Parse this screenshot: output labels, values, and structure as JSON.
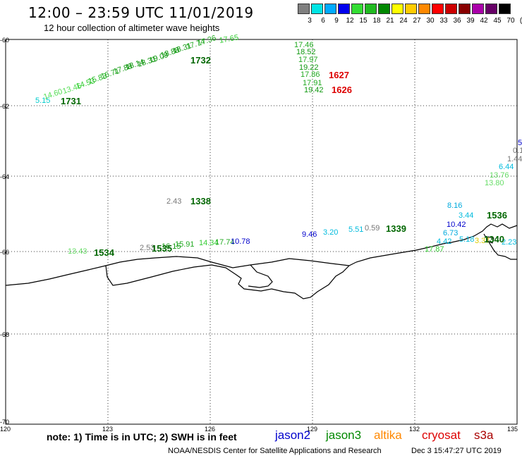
{
  "header": {
    "title": "12:00 – 23:59 UTC 11/01/2019",
    "subtitle": "12 hour collection of altimeter wave heights"
  },
  "color_scale": {
    "labels": [
      "3",
      "6",
      "9",
      "12",
      "15",
      "18",
      "21",
      "24",
      "27",
      "30",
      "33",
      "36",
      "39",
      "42",
      "45",
      "70",
      "(ft)"
    ],
    "colors": [
      "#808080",
      "#00e5e5",
      "#00aaff",
      "#0000ee",
      "#33dd33",
      "#22bb22",
      "#008800",
      "#ffff00",
      "#ffcc00",
      "#ff8800",
      "#ff0000",
      "#cc0000",
      "#880000",
      "#aa00aa",
      "#660066",
      "#000000"
    ]
  },
  "axes": {
    "lat_labels": [
      "-60",
      "-62",
      "-64",
      "-66",
      "-68",
      "-70"
    ],
    "lon_labels": [
      "120",
      "123",
      "126",
      "129",
      "132",
      "135"
    ]
  },
  "footer": {
    "note": "note:  1) Time is in UTC;  2) SWH is in feet",
    "satellites": [
      {
        "name": "jason2",
        "color": "#0000cc"
      },
      {
        "name": "jason3",
        "color": "#008800"
      },
      {
        "name": "altika",
        "color": "#ff8800"
      },
      {
        "name": "cryosat",
        "color": "#dd0000"
      },
      {
        "name": "s3a",
        "color": "#aa0000"
      }
    ],
    "credit": "NOAA/NESDIS Center for Satellite Applications and Research",
    "date": "Dec  3 15:47:27 UTC 2019"
  },
  "observations": [
    {
      "text": "5.15",
      "color": "#00cccc"
    },
    {
      "text": "14.60",
      "color": "#55dd55"
    },
    {
      "text": "13.46",
      "color": "#55dd55"
    },
    {
      "text": "14.53",
      "color": "#33cc33"
    },
    {
      "text": "15.83",
      "color": "#22bb22"
    },
    {
      "text": "16.71",
      "color": "#22aa22"
    },
    {
      "text": "17.88",
      "color": "#119911"
    },
    {
      "text": "18.14",
      "color": "#119911"
    },
    {
      "text": "18.31",
      "color": "#119911"
    },
    {
      "text": "19.09",
      "color": "#119911"
    },
    {
      "text": "18.88",
      "color": "#119911"
    },
    {
      "text": "18.31",
      "color": "#119911"
    },
    {
      "text": "17.74",
      "color": "#22aa22"
    },
    {
      "text": "17.36",
      "color": "#22aa22"
    },
    {
      "text": "17.65",
      "color": "#33cc33"
    },
    {
      "text": "17.46",
      "color": "#22aa22"
    },
    {
      "text": "18.52",
      "color": "#119911"
    },
    {
      "text": "17.97",
      "color": "#22aa22"
    },
    {
      "text": "19.22",
      "color": "#119911"
    },
    {
      "text": "17.86",
      "color": "#22aa22"
    },
    {
      "text": "17.91",
      "color": "#22aa22"
    },
    {
      "text": "19.42",
      "color": "#119911"
    },
    {
      "text": "2.43",
      "color": "#777777"
    },
    {
      "text": "13.43",
      "color": "#66dd66"
    },
    {
      "text": "2.53",
      "color": "#777777"
    },
    {
      "text": "16.15",
      "color": "#119911"
    },
    {
      "text": "15.91",
      "color": "#22aa22"
    },
    {
      "text": "14.34",
      "color": "#33cc33"
    },
    {
      "text": "17.74",
      "color": "#22aa22"
    },
    {
      "text": "10.78",
      "color": "#0000cc"
    },
    {
      "text": "9.46",
      "color": "#0000cc"
    },
    {
      "text": "3.20",
      "color": "#00bbdd"
    },
    {
      "text": "5.51",
      "color": "#00bbdd"
    },
    {
      "text": "0.59",
      "color": "#777777"
    },
    {
      "text": "17.87",
      "color": "#33cc33"
    },
    {
      "text": "8.16",
      "color": "#00aadd"
    },
    {
      "text": "3.44",
      "color": "#00bbdd"
    },
    {
      "text": "10.42",
      "color": "#0000cc"
    },
    {
      "text": "6.73",
      "color": "#00aadd"
    },
    {
      "text": "4.42",
      "color": "#00bbdd"
    },
    {
      "text": "5.18",
      "color": "#00bbdd"
    },
    {
      "text": "3.37",
      "color": "#ddcc00"
    },
    {
      "text": "2.23",
      "color": "#00bbdd"
    },
    {
      "text": "6.44",
      "color": "#00bbdd"
    },
    {
      "text": "13.76",
      "color": "#66dd66"
    },
    {
      "text": "13.80",
      "color": "#66dd66"
    },
    {
      "text": "1.44",
      "color": "#777777"
    },
    {
      "text": "0.1",
      "color": "#777777"
    },
    {
      "text": "5",
      "color": "#0000cc"
    }
  ],
  "pass_times": [
    {
      "text": "1731",
      "color": "#006600"
    },
    {
      "text": "1732",
      "color": "#006600"
    },
    {
      "text": "1627",
      "color": "#dd0000"
    },
    {
      "text": "1626",
      "color": "#dd0000"
    },
    {
      "text": "1338",
      "color": "#006600"
    },
    {
      "text": "1534",
      "color": "#006600"
    },
    {
      "text": "1535",
      "color": "#006600"
    },
    {
      "text": "1339",
      "color": "#006600"
    },
    {
      "text": "1536",
      "color": "#006600"
    },
    {
      "text": "1340",
      "color": "#006600"
    }
  ]
}
